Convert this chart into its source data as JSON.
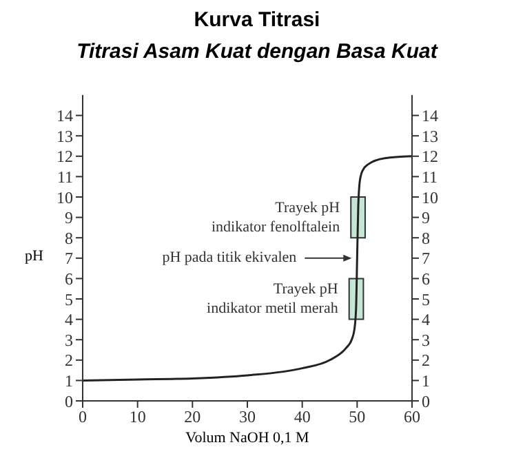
{
  "chart_data": {
    "type": "line",
    "title": "Kurva Titrasi",
    "subtitle": "Titrasi Asam Kuat dengan Basa Kuat",
    "xlabel": "Volum NaOH 0,1 M",
    "ylabel": "pH",
    "x": [
      0,
      10,
      20,
      30,
      40,
      45,
      48,
      49,
      49.5,
      49.8,
      50,
      50.2,
      50.5,
      51,
      52,
      55,
      60
    ],
    "series": [
      {
        "color": "#222222",
        "values": [
          1,
          1.05,
          1.1,
          1.25,
          1.6,
          2,
          2.6,
          3,
          3.5,
          4.5,
          7,
          9.5,
          10.8,
          11.3,
          11.6,
          11.9,
          12
        ]
      }
    ],
    "xlim": [
      0,
      60
    ],
    "xticks": [
      0,
      10,
      20,
      30,
      40,
      50,
      60
    ],
    "ylim": [
      0,
      15
    ],
    "yticks": [
      0,
      1,
      2,
      3,
      4,
      5,
      6,
      7,
      8,
      9,
      10,
      11,
      12,
      13,
      14
    ],
    "y2lim": [
      0,
      15
    ],
    "y2ticks": [
      0,
      1,
      2,
      3,
      4,
      5,
      6,
      7,
      8,
      9,
      10,
      11,
      12,
      13,
      14
    ],
    "bands": [
      {
        "axis": "y",
        "from": 8,
        "to": 10,
        "label": "Trayek pH\nindikator fenolftalein",
        "color": "#c5e5d5"
      },
      {
        "axis": "y",
        "from": 4,
        "to": 6,
        "label": "Trayek pH\nindikator metil merah",
        "color": "#c5e5d5"
      }
    ],
    "annotations": [
      {
        "text": "pH pada titik ekivalen",
        "x": 50,
        "y": 7
      }
    ],
    "grid": false,
    "legend": false,
    "marker": "none",
    "line_style": "solid"
  }
}
